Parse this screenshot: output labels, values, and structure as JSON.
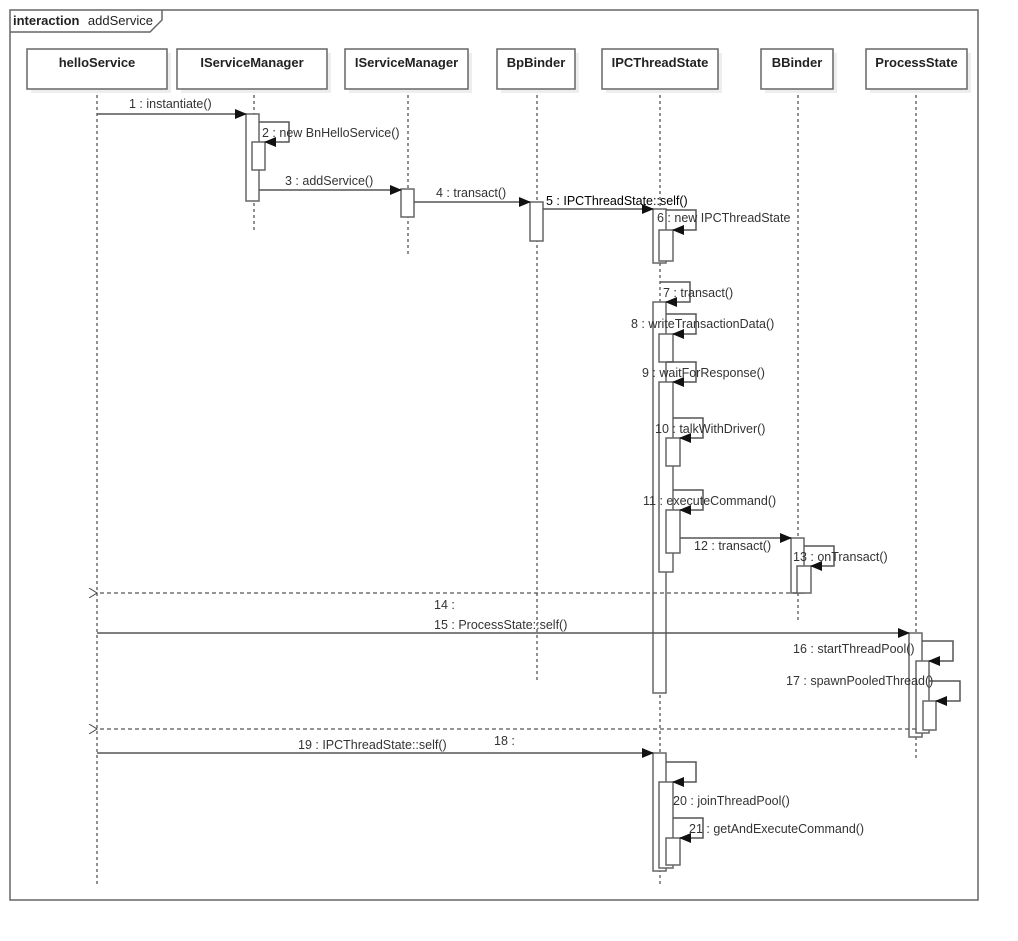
{
  "frame": {
    "keyword": "interaction",
    "name": "addService"
  },
  "lifelines": [
    "helloService",
    "IServiceManager",
    "IServiceManager",
    "BpBinder",
    "IPCThreadState",
    "BBinder",
    "ProcessState"
  ],
  "messages": [
    "1 : instantiate()",
    "2 : new  BnHelloService()",
    "3 : addService()",
    "4 : transact()",
    "5 : IPCThreadState::self()",
    "6 : new IPCThreadState",
    "7 : transact()",
    "8 : writeTransactionData()",
    "9 : waitForResponse()",
    "10 : talkWithDriver()",
    "11 : executeCommand()",
    "12 : transact()",
    "13 : onTransact()",
    "14 :",
    "15 : ProcessState::self()",
    "16 : startThreadPool()",
    "17 : spawnPooledThread()",
    "18 :",
    "19 : IPCThreadState::self()",
    "20 : joinThreadPool()",
    "21 : getAndExecuteCommand()"
  ]
}
